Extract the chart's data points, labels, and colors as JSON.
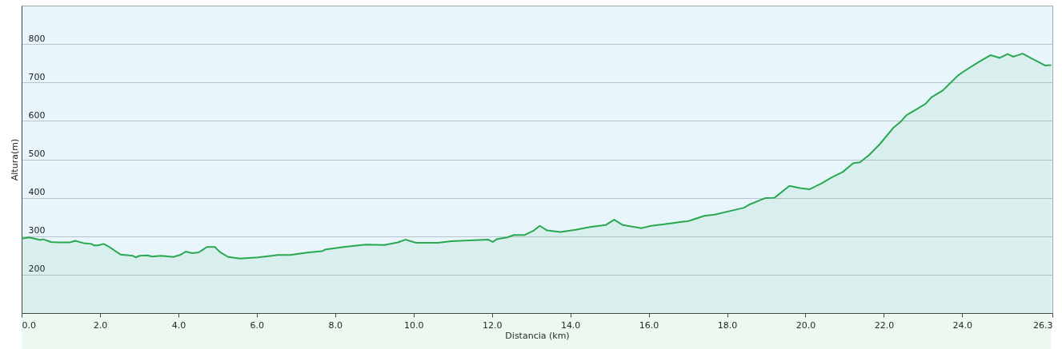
{
  "chart_data": {
    "type": "area",
    "xlabel": "Distancia  (km)",
    "ylabel": "Altura(m)",
    "x": [
      0,
      0.19,
      0.48,
      0.55,
      0.75,
      0.92,
      1.23,
      1.37,
      1.58,
      1.78,
      1.85,
      1.95,
      2.09,
      2.19,
      2.53,
      2.84,
      2.91,
      3.01,
      3.22,
      3.32,
      3.56,
      3.87,
      4.04,
      4.19,
      4.35,
      4.52,
      4.73,
      4.93,
      5.07,
      5.27,
      5.58,
      6.03,
      6.3,
      6.54,
      6.85,
      7.33,
      7.67,
      7.74,
      8.22,
      8.78,
      9.26,
      9.6,
      9.79,
      10.07,
      10.62,
      10.96,
      11.91,
      12.02,
      12.12,
      12.39,
      12.56,
      12.83,
      13.07,
      13.22,
      13.41,
      13.75,
      14.16,
      14.5,
      14.9,
      15.12,
      15.34,
      15.82,
      16.06,
      16.4,
      16.88,
      17.0,
      17.42,
      17.68,
      18.43,
      18.56,
      18.97,
      19.21,
      19.59,
      19.86,
      20.1,
      20.4,
      20.67,
      20.95,
      21.22,
      21.39,
      21.63,
      21.9,
      22.24,
      22.41,
      22.58,
      22.85,
      23.06,
      23.22,
      23.5,
      23.7,
      23.9,
      24.24,
      24.48,
      24.72,
      24.96,
      25.16,
      25.3,
      25.54,
      25.78,
      26.12,
      26.27
    ],
    "series": [
      {
        "color": "#2aa850",
        "values": [
          294,
          297,
          290,
          292,
          285,
          284,
          284,
          288,
          282,
          280,
          276,
          276,
          280,
          275,
          252,
          249,
          245,
          249,
          250,
          247,
          249,
          246,
          251,
          260,
          256,
          258,
          272,
          272,
          258,
          246,
          242,
          245,
          248,
          251,
          251,
          258,
          261,
          265,
          272,
          278,
          277,
          284,
          291,
          283,
          283,
          287,
          291,
          285,
          292,
          297,
          303,
          303,
          315,
          327,
          315,
          311,
          317,
          324,
          329,
          343,
          329,
          321,
          327,
          331,
          338,
          339,
          353,
          356,
          374,
          382,
          399,
          400,
          431,
          425,
          422,
          437,
          453,
          467,
          490,
          492,
          512,
          540,
          582,
          596,
          615,
          631,
          644,
          662,
          679,
          699,
          719,
          742,
          757,
          771,
          764,
          774,
          767,
          775,
          762,
          744,
          745
        ]
      }
    ],
    "xlim": [
      0,
      26.3
    ],
    "ylim": [
      100,
      900
    ],
    "xticks": [
      {
        "value": 0,
        "label": "0.0"
      },
      {
        "value": 2,
        "label": "2.0"
      },
      {
        "value": 4,
        "label": "4.0"
      },
      {
        "value": 6,
        "label": "6.0"
      },
      {
        "value": 8,
        "label": "8.0"
      },
      {
        "value": 10,
        "label": "10.0"
      },
      {
        "value": 12,
        "label": "12.0"
      },
      {
        "value": 14,
        "label": "14.0"
      },
      {
        "value": 16,
        "label": "16.0"
      },
      {
        "value": 18,
        "label": "18.0"
      },
      {
        "value": 20,
        "label": "20.0"
      },
      {
        "value": 22,
        "label": "22.0"
      },
      {
        "value": 24,
        "label": "24.0"
      },
      {
        "value": 26.3,
        "label": "26.3"
      }
    ],
    "yticks": [
      200,
      300,
      400,
      500,
      600,
      700,
      800
    ],
    "grid": "y"
  }
}
